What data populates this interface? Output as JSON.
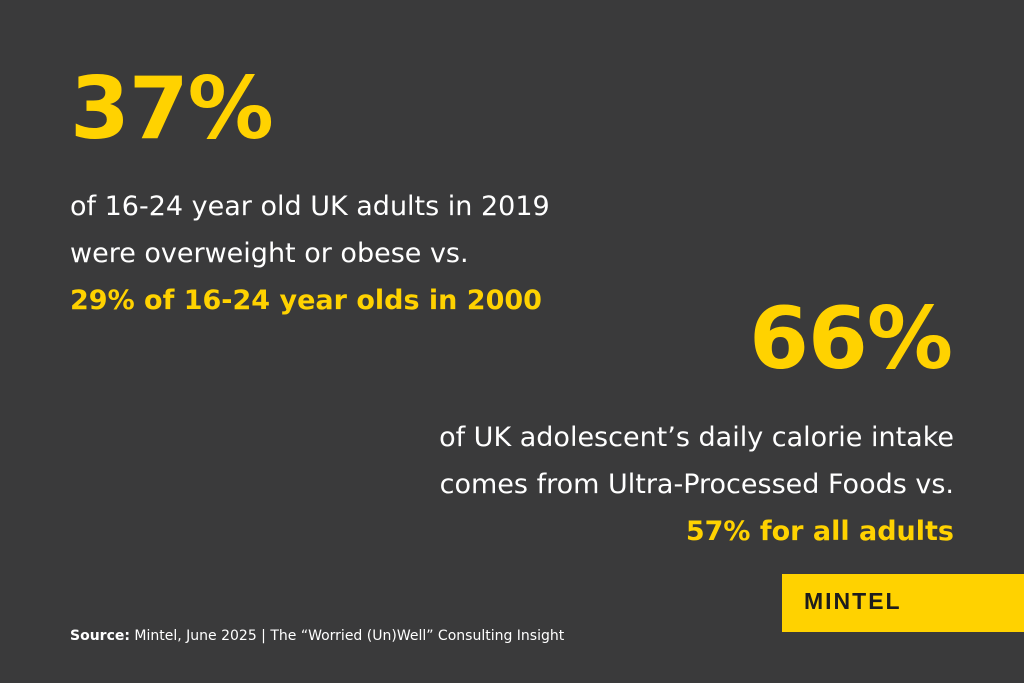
{
  "stat1": {
    "value": "37%",
    "line1": "of 16-24 year old UK adults in 2019",
    "line2": "were overweight or obese vs.",
    "highlight": "29% of 16-24 year olds in 2000"
  },
  "stat2": {
    "value": "66%",
    "line1": "of UK adolescent’s daily calorie intake",
    "line2": "comes from Ultra-Processed Foods vs.",
    "highlight": "57% for all adults"
  },
  "logo": {
    "text": "MINTEL"
  },
  "source": {
    "label": "Source:",
    "text": " Mintel, June 2025 | The “Worried (Un)Well” Consulting Insight"
  },
  "colors": {
    "background": "#3a3a3b",
    "accent": "#ffd200",
    "text": "#ffffff",
    "logo_text": "#1d1d1d"
  }
}
